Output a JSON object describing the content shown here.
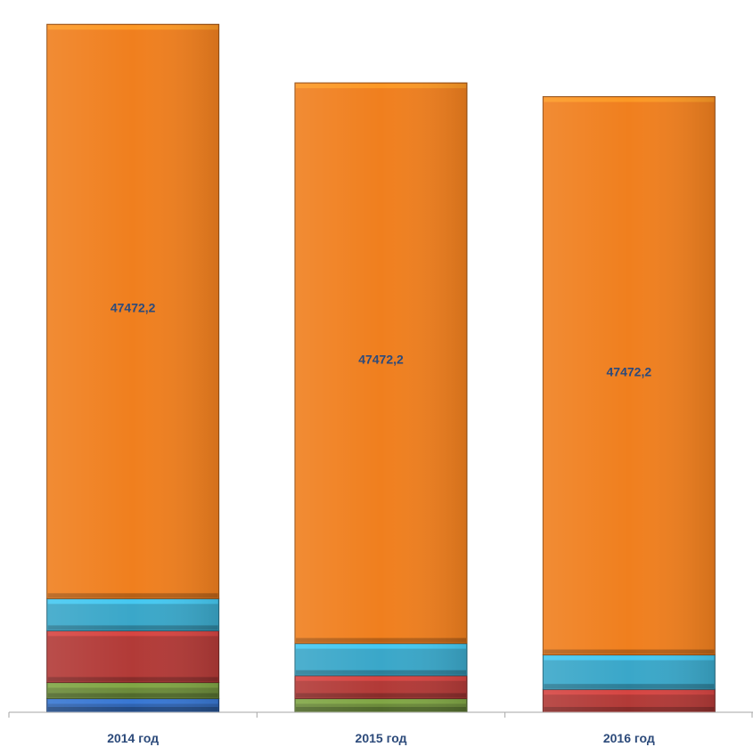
{
  "chart_data": {
    "type": "bar",
    "stacked": true,
    "categories": [
      "2014 год",
      "2015 год",
      "2016 год"
    ],
    "series": [
      {
        "color": "#2f63b0",
        "values": [
          1.2,
          0,
          0
        ]
      },
      {
        "color": "#6b8a3a",
        "values": [
          1.4,
          1.2,
          0
        ]
      },
      {
        "color": "#b23a37",
        "values": [
          4.5,
          2.0,
          2.0
        ]
      },
      {
        "color": "#3aa7c9",
        "values": [
          2.8,
          2.8,
          3.0
        ]
      },
      {
        "color": "#f07f1e",
        "values": [
          50.0,
          48.8,
          48.6
        ],
        "data_labels": [
          "47472,2",
          "47472,2",
          "47472,2"
        ]
      }
    ],
    "axis_color": "#a6a6a6",
    "grid": false,
    "legend": "none"
  }
}
